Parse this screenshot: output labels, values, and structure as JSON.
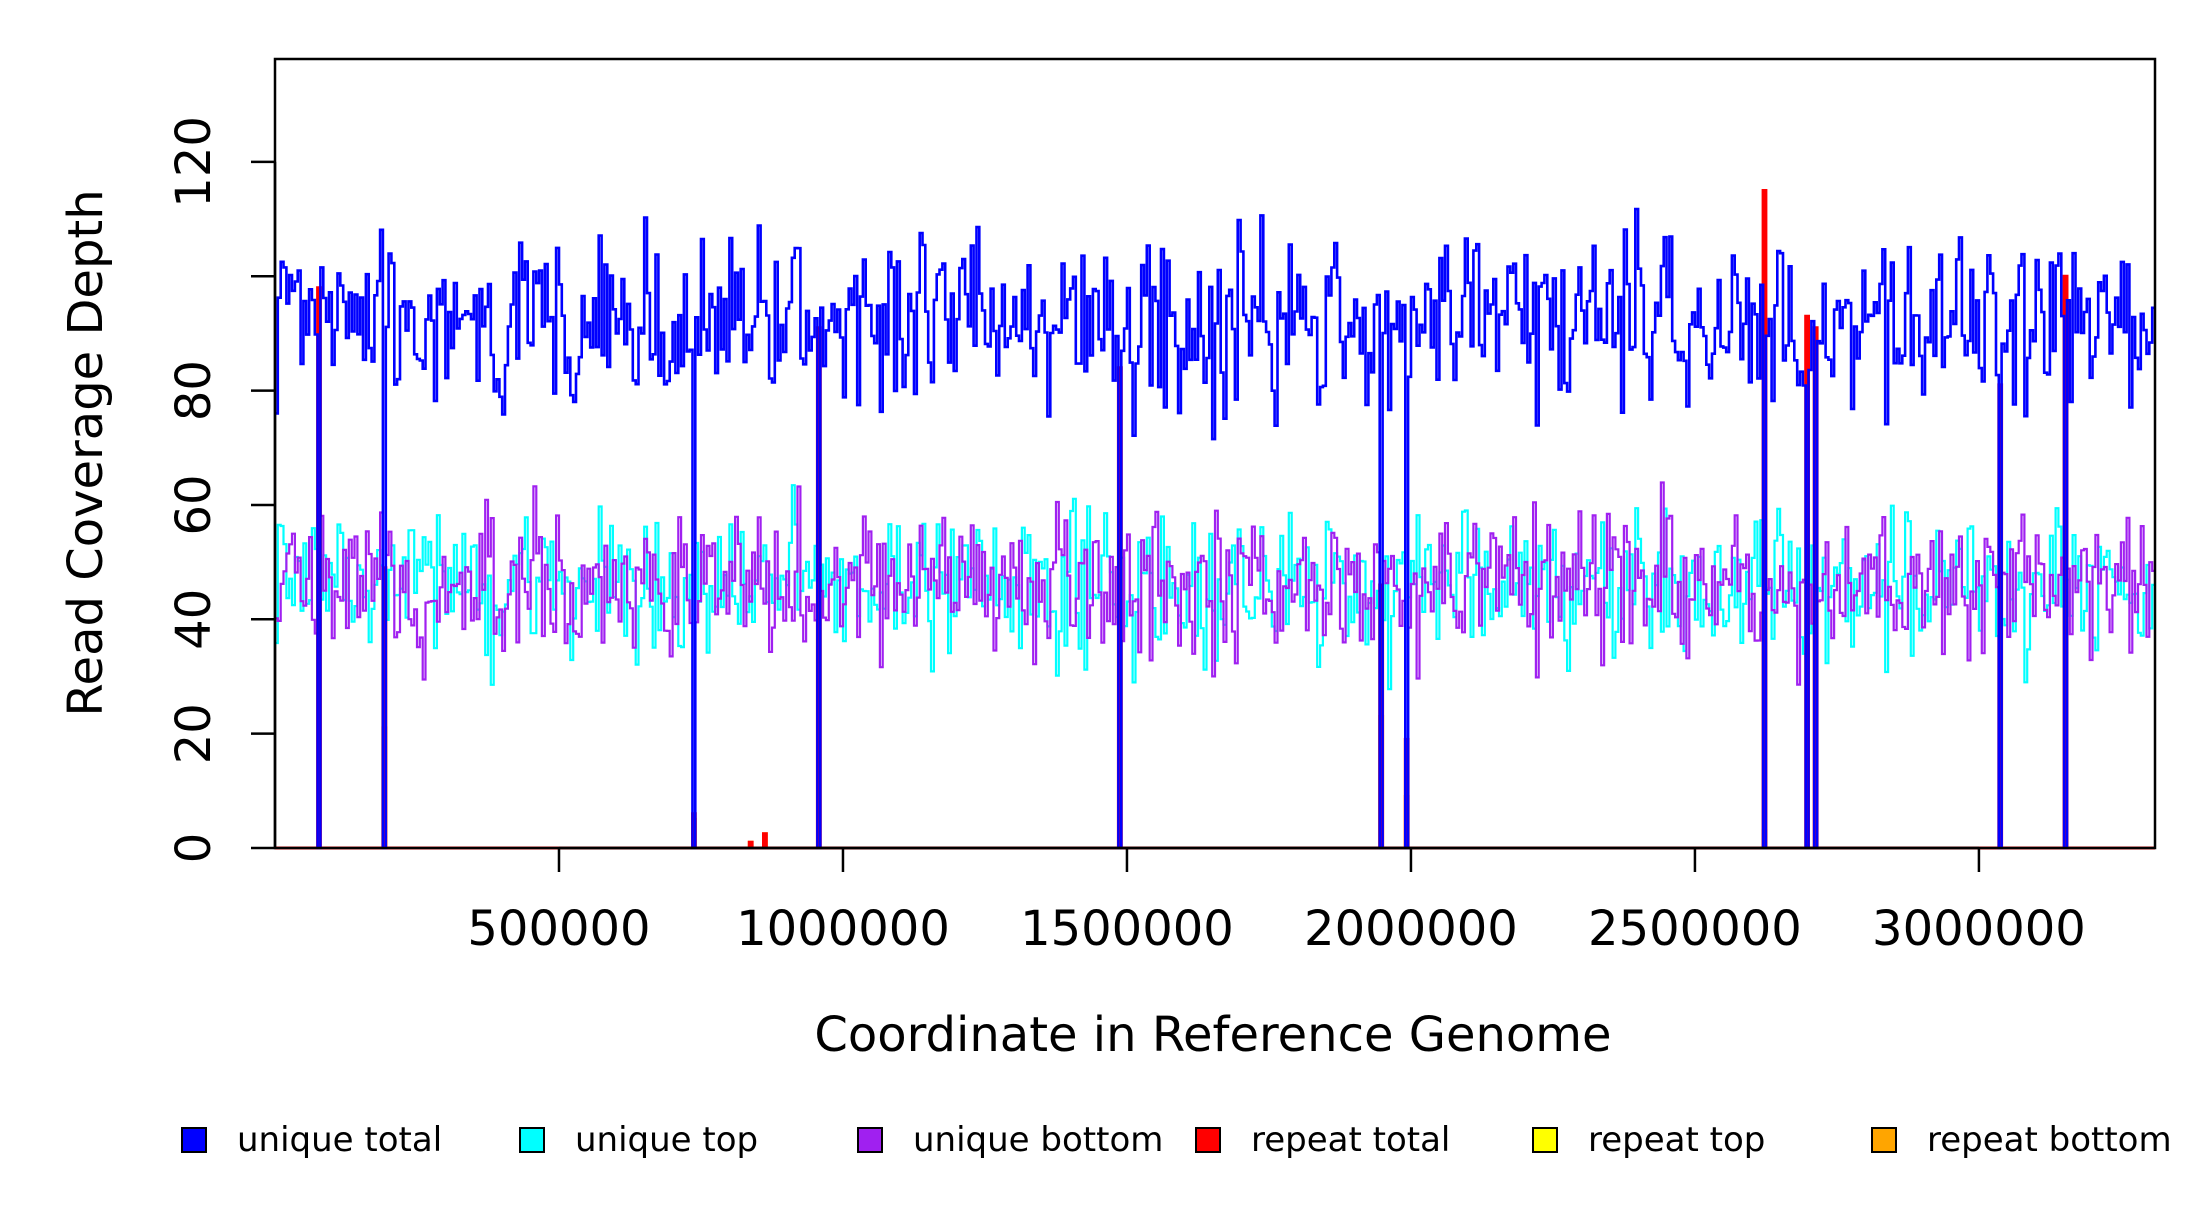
{
  "chart_data": {
    "type": "line",
    "title": "",
    "xlabel": "Coordinate in Reference Genome",
    "ylabel": "Read Coverage Depth",
    "xlim": [
      0,
      3310000
    ],
    "ylim": [
      0,
      138
    ],
    "x_ticks": [
      {
        "value": 500000,
        "label": "500000"
      },
      {
        "value": 1000000,
        "label": "1000000"
      },
      {
        "value": 1500000,
        "label": "1500000"
      },
      {
        "value": 2000000,
        "label": "2000000"
      },
      {
        "value": 2500000,
        "label": "2500000"
      },
      {
        "value": 3000000,
        "label": "3000000"
      }
    ],
    "y_ticks": [
      {
        "value": 0,
        "label": "0"
      },
      {
        "value": 20,
        "label": "20"
      },
      {
        "value": 40,
        "label": "40"
      },
      {
        "value": 60,
        "label": "60"
      },
      {
        "value": 80,
        "label": "80"
      },
      {
        "value": 100,
        "label": ""
      },
      {
        "value": 120,
        "label": "120"
      }
    ],
    "grid": false,
    "legend_position": "bottom",
    "step_bin": 5000,
    "series": [
      {
        "name": "unique total",
        "color": "#0000ff"
      },
      {
        "name": "unique top",
        "color": "#00ffff"
      },
      {
        "name": "unique bottom",
        "color": "#a020f0"
      },
      {
        "name": "repeat total",
        "color": "#ff0000"
      },
      {
        "name": "repeat top",
        "color": "#ffff00"
      },
      {
        "name": "repeat bottom",
        "color": "#ffa500"
      }
    ],
    "unique_total_level": 92,
    "unique_strand_level": 46,
    "coverage_gaps": [
      {
        "x": 75000,
        "repeat_total": 98,
        "repeat_bottom": 0
      },
      {
        "x": 190000,
        "repeat_total": 49,
        "repeat_bottom": 21
      },
      {
        "x": 735000,
        "repeat_total": 6,
        "repeat_bottom": 5
      },
      {
        "x": 955000,
        "repeat_total": 91,
        "repeat_bottom": 0
      },
      {
        "x": 1485000,
        "repeat_total": 84,
        "repeat_bottom": 0
      },
      {
        "x": 1945000,
        "repeat_total": 46,
        "repeat_bottom": 23
      },
      {
        "x": 1990000,
        "repeat_total": 19,
        "repeat_bottom": 9
      },
      {
        "x": 2620000,
        "repeat_total": 115,
        "repeat_bottom": 3
      },
      {
        "x": 2695000,
        "repeat_total": 93,
        "repeat_bottom": 0
      },
      {
        "x": 2710000,
        "repeat_total": 91,
        "repeat_bottom": 0
      },
      {
        "x": 3035000,
        "repeat_total": 81,
        "repeat_bottom": 0
      },
      {
        "x": 3150000,
        "repeat_total": 100,
        "repeat_bottom": 0
      }
    ],
    "repeat_spikes": [
      {
        "x": 835000,
        "value": 1
      },
      {
        "x": 860000,
        "value": 2.5
      }
    ]
  }
}
